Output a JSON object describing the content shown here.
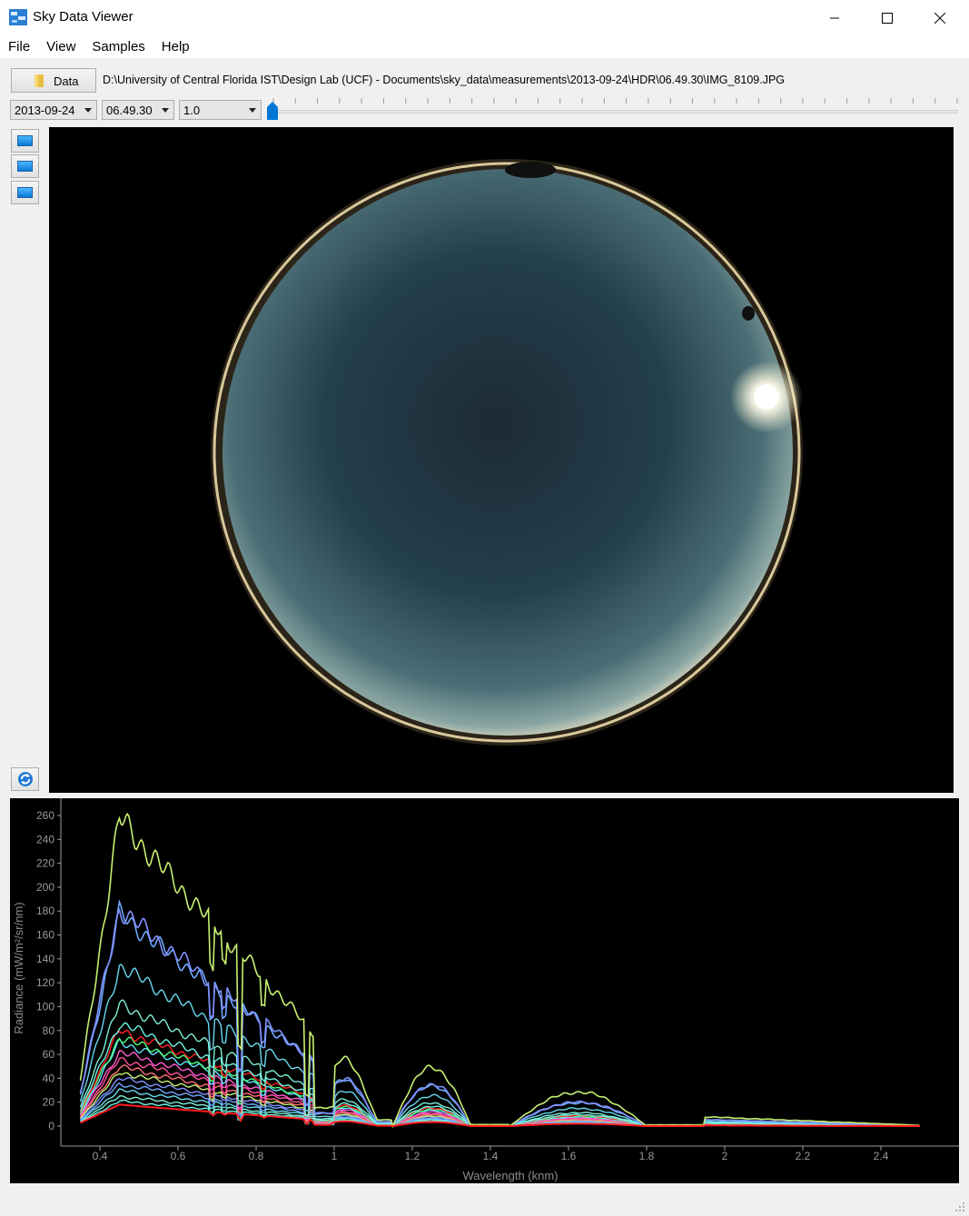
{
  "window": {
    "title": "Sky Data Viewer",
    "icon": "sky-app-icon",
    "controls": [
      "minimize-icon",
      "maximize-icon",
      "close-icon"
    ]
  },
  "menu": [
    {
      "label": "File"
    },
    {
      "label": "View"
    },
    {
      "label": "Samples"
    },
    {
      "label": "Help"
    }
  ],
  "toolbar": {
    "data_button_label": "Data",
    "data_button_icon": "folder-icon",
    "path": "D:\\University of Central Florida IST\\Design Lab (UCF) - Documents\\sky_data\\measurements\\2013-09-24\\HDR\\06.49.30\\IMG_8109.JPG",
    "date_select": "2013-09-24",
    "time_select": "06.49.30",
    "exposure_select": "1.0",
    "slider_value": 0
  },
  "side_buttons": [
    "monitor-icon",
    "monitor-icon",
    "monitor-icon"
  ],
  "refresh_icon": "refresh-icon",
  "chart_data": {
    "type": "line",
    "xlabel": "Wavelength (knm)",
    "ylabel": "Radiance (mW/m²/sr/nm)",
    "xlim": [
      0.35,
      2.5
    ],
    "ylim": [
      0,
      260
    ],
    "x_ticks": [
      "0.4",
      "0.6",
      "0.8",
      "1",
      "1.2",
      "1.4",
      "1.6",
      "1.8",
      "2",
      "2.2",
      "2.4"
    ],
    "y_ticks": [
      "0",
      "20",
      "40",
      "60",
      "80",
      "100",
      "120",
      "140",
      "160",
      "180",
      "200",
      "220",
      "240",
      "260"
    ],
    "series_colors": [
      "#6ff5e4",
      "#7cf0d8",
      "#69d9f0",
      "#6fa8ff",
      "#8090ff",
      "#c6f070",
      "#ff7070",
      "#ff4fa0",
      "#ff5cd0",
      "#60e0ff",
      "#50ff80",
      "#ff2020"
    ],
    "series": [
      {
        "scale": 258
      },
      {
        "scale": 182
      },
      {
        "scale": 178
      },
      {
        "scale": 134
      },
      {
        "scale": 102
      },
      {
        "scale": 86
      },
      {
        "scale": 80
      },
      {
        "scale": 74
      },
      {
        "scale": 70
      },
      {
        "scale": 62
      },
      {
        "scale": 56
      },
      {
        "scale": 50
      },
      {
        "scale": 45
      },
      {
        "scale": 40
      },
      {
        "scale": 35
      },
      {
        "scale": 30
      },
      {
        "scale": 25
      },
      {
        "scale": 21
      }
    ],
    "background": "#000000",
    "grid": false
  }
}
